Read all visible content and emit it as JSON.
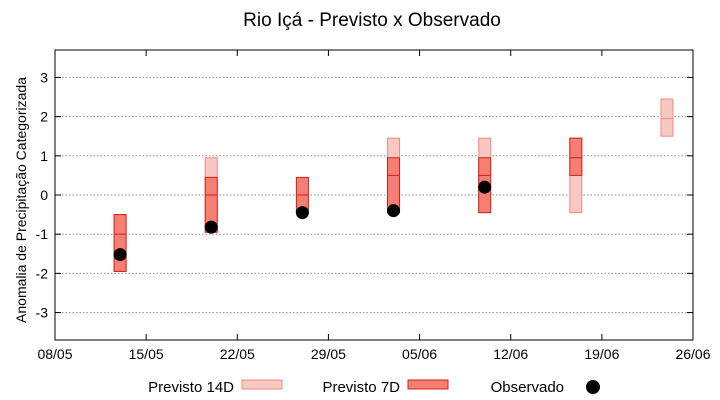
{
  "chart_data": {
    "type": "range-bar",
    "title": "Rio Içá - Previsto x Observado",
    "xlabel": "",
    "ylabel": "Anomalia de Precipitação Categorizada",
    "ylim": [
      -3.7,
      3.7
    ],
    "yticks": [
      -3,
      -2,
      -1,
      0,
      1,
      2,
      3
    ],
    "ytick_labels": [
      "-3",
      "-2",
      "-1",
      "0",
      "1",
      "2",
      "3"
    ],
    "x_range_days": [
      0,
      49
    ],
    "xticks_days": [
      0,
      7,
      14,
      21,
      28,
      35,
      42,
      49
    ],
    "xtick_labels": [
      "08/05",
      "15/05",
      "22/05",
      "29/05",
      "05/06",
      "12/06",
      "19/06",
      "26/06"
    ],
    "grid": "horizontal-dotted",
    "colors": {
      "forecast_14d_fill": "#f8c8c4",
      "forecast_14d_edge": "#f08a80",
      "forecast_7d_fill": "#f57f75",
      "forecast_7d_edge": "#d42015",
      "observed": "#000000"
    },
    "series": [
      {
        "name": "Previsto 14D",
        "kind": "range",
        "points": [
          {
            "x": 5,
            "low": -1.95,
            "high": -0.5,
            "mid": -0.95
          },
          {
            "x": 12,
            "low": -0.95,
            "high": 0.95,
            "mid": -0.5
          },
          {
            "x": 26,
            "low": -0.45,
            "high": 1.45,
            "mid": 0.5
          },
          {
            "x": 33,
            "low": -0.45,
            "high": 1.45,
            "mid": 0.95
          },
          {
            "x": 40,
            "low": -0.45,
            "high": 1.45,
            "mid": 0.95
          },
          {
            "x": 47,
            "low": 1.5,
            "high": 2.45,
            "mid": 1.95
          }
        ]
      },
      {
        "name": "Previsto 7D",
        "kind": "range",
        "points": [
          {
            "x": 5,
            "low": -1.95,
            "high": -0.5,
            "mid": -1.0
          },
          {
            "x": 12,
            "low": -0.95,
            "high": 0.45,
            "mid": 0.0
          },
          {
            "x": 19,
            "low": -0.45,
            "high": 0.45,
            "mid": 0.0
          },
          {
            "x": 26,
            "low": -0.45,
            "high": 0.95,
            "mid": 0.5
          },
          {
            "x": 33,
            "low": -0.45,
            "high": 0.95,
            "mid": 0.5
          },
          {
            "x": 40,
            "low": 0.5,
            "high": 1.45,
            "mid": 0.95
          }
        ]
      },
      {
        "name": "Observado",
        "kind": "points",
        "points": [
          {
            "x": 5,
            "y": -1.52
          },
          {
            "x": 12,
            "y": -0.82
          },
          {
            "x": 19,
            "y": -0.45
          },
          {
            "x": 26,
            "y": -0.4
          },
          {
            "x": 33,
            "y": 0.2
          }
        ]
      }
    ],
    "legend": {
      "position": "bottom",
      "entries": [
        "Previsto 14D",
        "Previsto 7D",
        "Observado"
      ]
    }
  }
}
